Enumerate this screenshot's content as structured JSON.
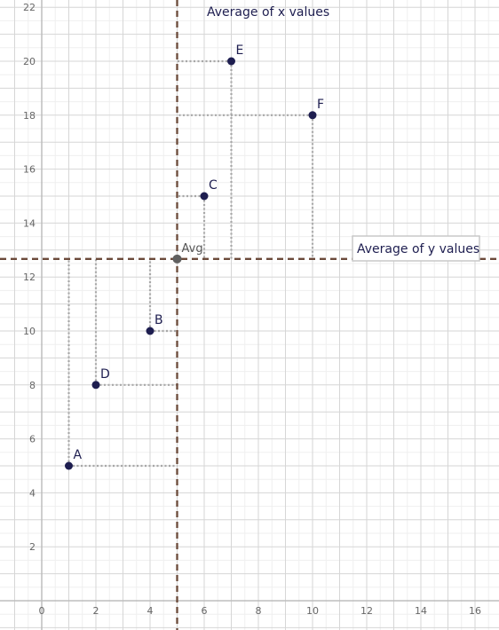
{
  "chart_data": {
    "type": "scatter",
    "xlim": [
      -1,
      16.5
    ],
    "ylim": [
      -0.8,
      22.3
    ],
    "x_ticks": [
      0,
      2,
      4,
      6,
      8,
      10,
      12,
      14,
      16
    ],
    "y_ticks": [
      2,
      4,
      6,
      8,
      10,
      12,
      14,
      16,
      18,
      20,
      22
    ],
    "grid": true,
    "points": [
      {
        "label": "A",
        "x": 1,
        "y": 5
      },
      {
        "label": "B",
        "x": 4,
        "y": 10
      },
      {
        "label": "C",
        "x": 6,
        "y": 15
      },
      {
        "label": "D",
        "x": 2,
        "y": 8
      },
      {
        "label": "E",
        "x": 7,
        "y": 20
      },
      {
        "label": "F",
        "x": 10,
        "y": 18
      }
    ],
    "average_point": {
      "label": "Avg",
      "x": 5,
      "y": 12.67
    },
    "average_x_line": {
      "value": 5,
      "label": "Average of x values"
    },
    "average_y_line": {
      "value": 12.67,
      "label": "Average of y values"
    },
    "colors": {
      "point": "#1e1e50",
      "average_point": "#606060",
      "average_line": "#6b4a3a",
      "guide_line": "#a8a8a8",
      "grid_major": "#d6d6d6",
      "grid_minor": "#efefef"
    }
  }
}
